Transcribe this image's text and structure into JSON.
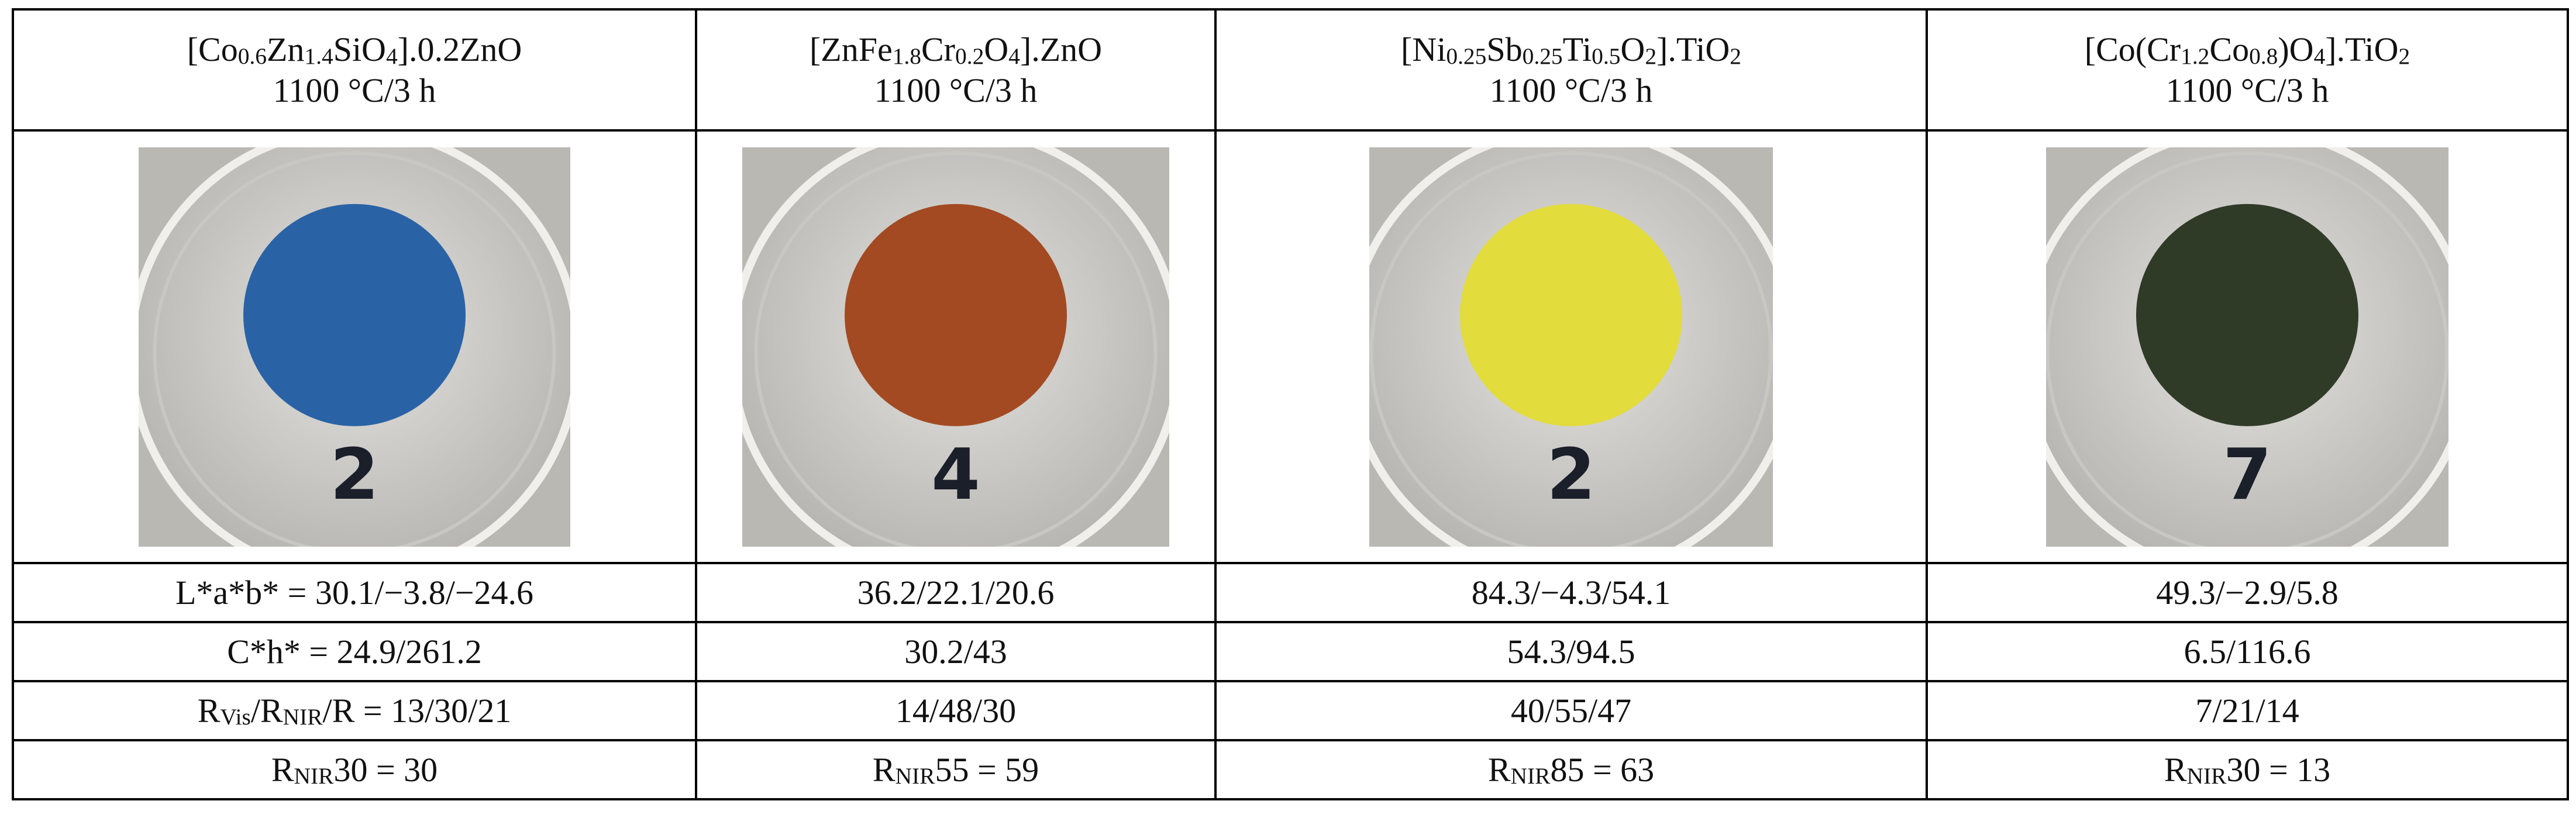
{
  "table": {
    "header": [
      {
        "formula": [
          "[Co",
          "0.6",
          "Zn",
          "1.4",
          "SiO",
          "4",
          "].0.2ZnO"
        ],
        "condition": "1100 °C/3 h"
      },
      {
        "formula": [
          "[ZnFe",
          "1.8",
          "Cr",
          "0.2",
          "O",
          "4",
          "].ZnO"
        ],
        "condition": "1100 °C/3 h"
      },
      {
        "formula": [
          "[Ni",
          "0.25",
          "Sb",
          "0.25",
          "Ti",
          "0.5",
          "O",
          "2",
          "].TiO",
          "2"
        ],
        "condition": "1100 °C/3 h"
      },
      {
        "formula": [
          "[Co(Cr",
          "1.2",
          "Co",
          "0.8",
          ")O",
          "4",
          "].TiO",
          "2"
        ],
        "condition": "1100 °C/3 h"
      }
    ],
    "photos": [
      "2",
      "4",
      "2",
      "7"
    ],
    "rows": [
      [
        [
          "L*a*b* = 30.1/−3.8/−24.6"
        ],
        [
          "36.2/22.1/20.6"
        ],
        [
          "84.3/−4.3/54.1"
        ],
        [
          "49.3/−2.9/5.8"
        ]
      ],
      [
        [
          "C*h* = 24.9/261.2"
        ],
        [
          "30.2/43"
        ],
        [
          "54.3/94.5"
        ],
        [
          "6.5/116.6"
        ]
      ],
      [
        [
          "R",
          "Vis",
          "/R",
          "NIR",
          "/R = 13/30/21"
        ],
        [
          "14/48/30"
        ],
        [
          "40/55/47"
        ],
        [
          "7/21/14"
        ]
      ],
      [
        [
          "R",
          "NIR",
          "30 = 30"
        ],
        [
          "R",
          "NIR",
          "55 = 59"
        ],
        [
          "R",
          "NIR",
          "85 = 63"
        ],
        [
          "R",
          "NIR",
          "30 = 13"
        ]
      ]
    ]
  }
}
